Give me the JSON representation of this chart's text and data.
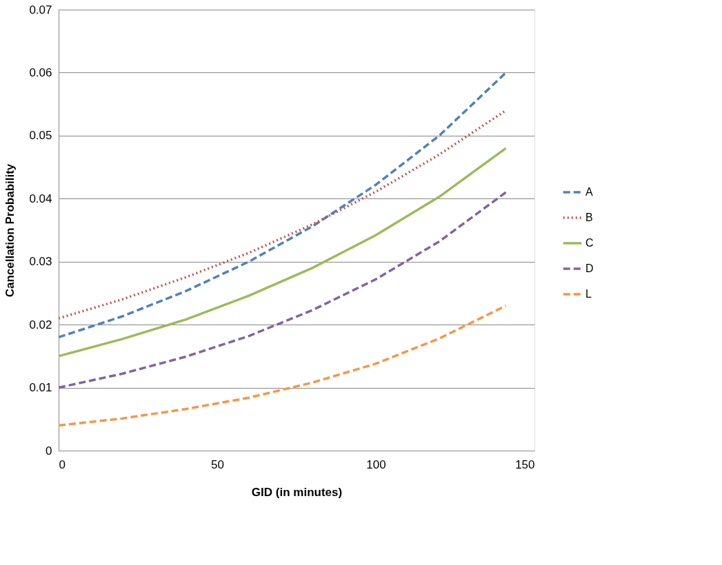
{
  "chart_data": {
    "type": "line",
    "xlabel": "GID (in minutes)",
    "ylabel": "Cancellation Probability",
    "xlim": [
      0,
      150
    ],
    "xticks": [
      0,
      50,
      100,
      150
    ],
    "ylim": [
      0,
      0.07
    ],
    "yticks": [
      0,
      0.01,
      0.02,
      0.03,
      0.04,
      0.05,
      0.06,
      0.07
    ],
    "grid": "y",
    "legend": "right",
    "marker": "none",
    "x": [
      0,
      20,
      40,
      60,
      80,
      100,
      120,
      141
    ],
    "series": [
      {
        "name": "A",
        "color": "#4f81bd",
        "line_style": "dashed",
        "values": [
          0.018,
          0.0213,
          0.0253,
          0.03,
          0.0356,
          0.0422,
          0.05,
          0.06
        ]
      },
      {
        "name": "B",
        "color": "#c0504d",
        "line_style": "dotted",
        "values": [
          0.021,
          0.024,
          0.0275,
          0.0314,
          0.0359,
          0.0411,
          0.047,
          0.054
        ]
      },
      {
        "name": "C",
        "color": "#9bbb59",
        "line_style": "solid",
        "values": [
          0.015,
          0.0177,
          0.0208,
          0.0246,
          0.029,
          0.0342,
          0.0403,
          0.048
        ]
      },
      {
        "name": "D",
        "color": "#8064a2",
        "line_style": "dashed",
        "values": [
          0.01,
          0.0122,
          0.0149,
          0.0182,
          0.0223,
          0.0272,
          0.0332,
          0.041
        ]
      },
      {
        "name": "L",
        "color": "#f79646",
        "line_style": "dashed",
        "values": [
          0.004,
          0.0051,
          0.0066,
          0.0084,
          0.0108,
          0.0138,
          0.0178,
          0.023
        ]
      }
    ]
  }
}
